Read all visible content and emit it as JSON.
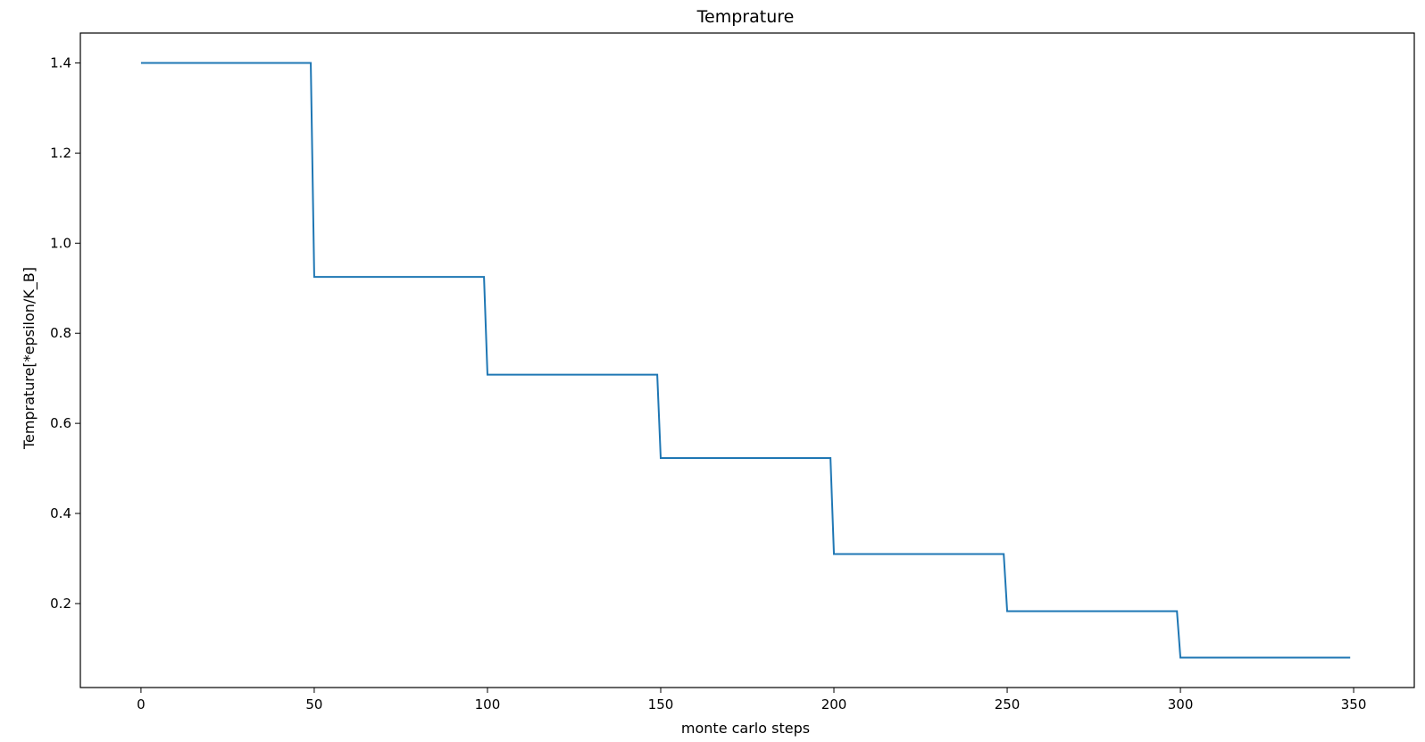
{
  "chart_data": {
    "type": "line",
    "title": "Temprature",
    "xlabel": "monte carlo steps",
    "ylabel": "Temprature[*epsilon/K_B]",
    "xlim": [
      -17.5,
      367.5
    ],
    "ylim": [
      0.0136,
      1.4664
    ],
    "xticks": [
      0,
      50,
      100,
      150,
      200,
      250,
      300,
      350
    ],
    "yticks": [
      0.2,
      0.4,
      0.6,
      0.8,
      1.0,
      1.2,
      1.4
    ],
    "ytick_labels": [
      "0.2",
      "0.4",
      "0.6",
      "0.8",
      "1.0",
      "1.2",
      "1.4"
    ],
    "grid": false,
    "legend": false,
    "series_color": "#1f77b4",
    "series": [
      {
        "x": [
          0,
          49,
          50,
          99,
          100,
          149,
          150,
          199,
          200,
          249,
          250,
          299,
          300,
          349
        ],
        "y": [
          1.4,
          1.4,
          0.925,
          0.925,
          0.708,
          0.708,
          0.523,
          0.523,
          0.31,
          0.31,
          0.183,
          0.183,
          0.08,
          0.08
        ]
      }
    ]
  }
}
